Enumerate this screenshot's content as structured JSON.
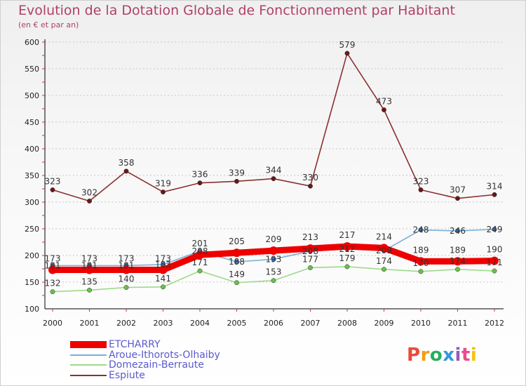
{
  "title": "Evolution de la Dotation Globale de Fonctionnement par Habitant",
  "subtitle": "(en € et par an)",
  "brand": "Proxiti",
  "brand_colors": [
    "#e84a3c",
    "#f39c12",
    "#27ae60",
    "#3498db",
    "#9b59b6",
    "#e74c8c",
    "#f1c40f"
  ],
  "chart_data": {
    "type": "line",
    "title": "Evolution de la Dotation Globale de Fonctionnement par Habitant",
    "ylabel": "(en € et par an)",
    "xlabel": "",
    "categories": [
      "2000",
      "2001",
      "2002",
      "2003",
      "2004",
      "2005",
      "2006",
      "2007",
      "2008",
      "2009",
      "2010",
      "2011",
      "2012"
    ],
    "ylim": [
      100,
      600
    ],
    "yticks": [
      100,
      150,
      200,
      250,
      300,
      350,
      400,
      450,
      500,
      550,
      600
    ],
    "legend_position": "bottom-left",
    "series": [
      {
        "name": "ETCHARRY",
        "color": "#ee0000",
        "marker_color": "#ee0000",
        "values": [
          173,
          173,
          173,
          173,
          201,
          205,
          209,
          213,
          217,
          214,
          189,
          189,
          190
        ]
      },
      {
        "name": "Aroue-Ithorots-Olhaiby",
        "color": "#7ab0d8",
        "marker_color": "#3a78c8",
        "values": [
          181,
          181,
          181,
          183,
          208,
          188,
          193,
          208,
          212,
          209,
          248,
          246,
          249
        ]
      },
      {
        "name": "Domezain-Berraute",
        "color": "#9ed98a",
        "marker_color": "#6ac04a",
        "values": [
          132,
          135,
          140,
          141,
          171,
          149,
          153,
          177,
          179,
          174,
          170,
          174,
          171
        ]
      },
      {
        "name": "Espiute",
        "color": "#8a3030",
        "marker_color": "#6a1818",
        "values": [
          323,
          302,
          358,
          319,
          336,
          339,
          344,
          330,
          579,
          473,
          323,
          307,
          314
        ]
      }
    ]
  }
}
